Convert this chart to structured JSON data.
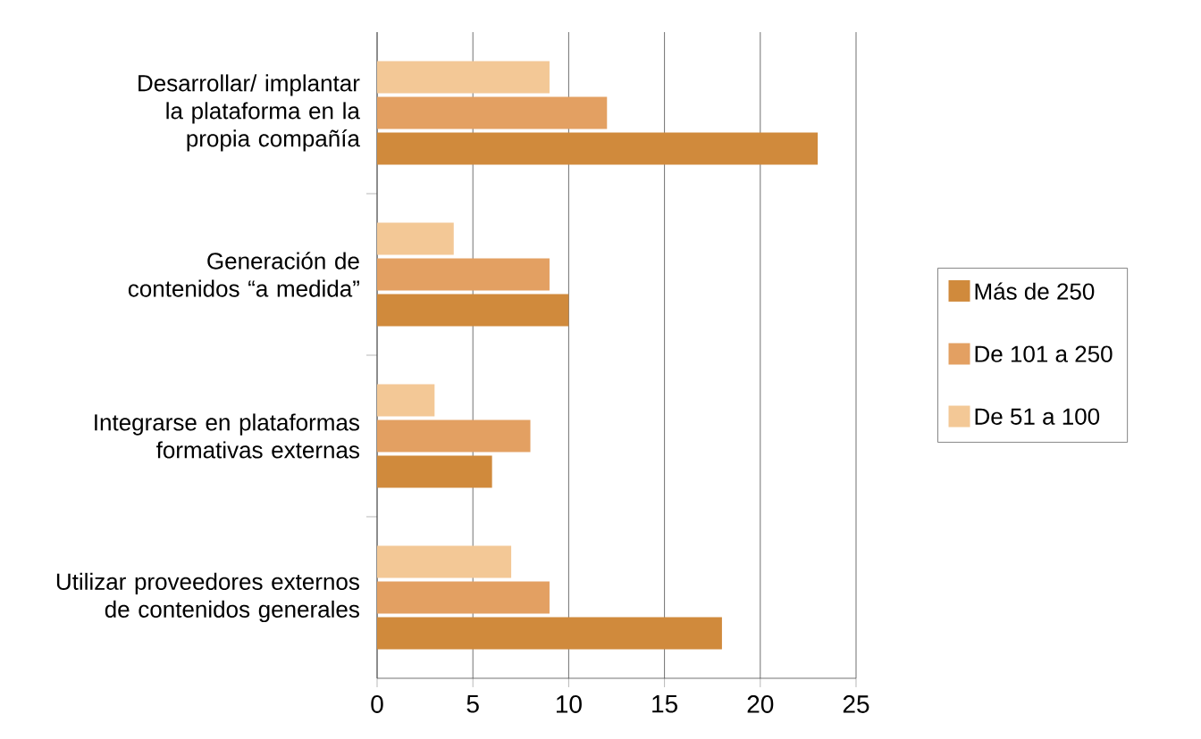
{
  "chart_data": {
    "type": "bar",
    "orientation": "horizontal",
    "categories": [
      "Desarrollar/ implantar la plataforma en la propia compañía",
      "Generación de contenidos “a medida”",
      "Integrarse en plataformas formativas externas",
      "Utilizar proveedores externos de contenidos generales"
    ],
    "series": [
      {
        "name": "Más de 250",
        "color": "#d08a3c",
        "values": [
          23,
          10,
          6,
          18
        ]
      },
      {
        "name": "De 101 a 250",
        "color": "#e3a062",
        "values": [
          12,
          9,
          8,
          9
        ]
      },
      {
        "name": "De 51 a 100",
        "color": "#f3c896",
        "values": [
          9,
          4,
          3,
          7
        ]
      }
    ],
    "xlim": [
      0,
      25
    ],
    "xticks": [
      0,
      5,
      10,
      15,
      20,
      25
    ],
    "grid": "x",
    "legend": "right"
  }
}
